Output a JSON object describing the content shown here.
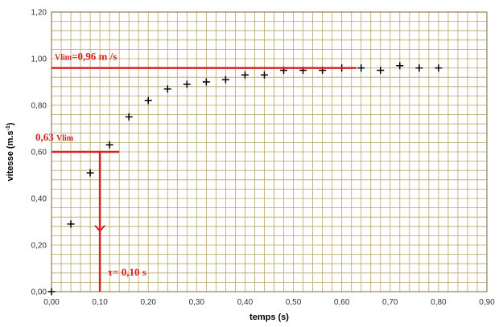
{
  "chart_data": {
    "type": "scatter",
    "xlabel": "temps (s)",
    "ylabel_main": "vitesse (m.s",
    "ylabel_sup": "-1",
    "ylabel_end": ")",
    "xlim": [
      0,
      0.9
    ],
    "ylim": [
      0,
      1.2
    ],
    "x_ticks": [
      "0,00",
      "0,10",
      "0,20",
      "0,30",
      "0,40",
      "0,50",
      "0,60",
      "0,70",
      "0,80",
      "0,90"
    ],
    "y_ticks": [
      "0,00",
      "0,20",
      "0,40",
      "0,60",
      "0,80",
      "1,00",
      "1,20"
    ],
    "grid": true,
    "marker": "+",
    "points": [
      [
        0.0,
        0.0
      ],
      [
        0.04,
        0.29
      ],
      [
        0.08,
        0.51
      ],
      [
        0.12,
        0.63
      ],
      [
        0.16,
        0.75
      ],
      [
        0.2,
        0.82
      ],
      [
        0.24,
        0.87
      ],
      [
        0.28,
        0.89
      ],
      [
        0.32,
        0.9
      ],
      [
        0.36,
        0.91
      ],
      [
        0.4,
        0.93
      ],
      [
        0.44,
        0.93
      ],
      [
        0.48,
        0.95
      ],
      [
        0.52,
        0.95
      ],
      [
        0.56,
        0.95
      ],
      [
        0.6,
        0.96
      ],
      [
        0.64,
        0.96
      ],
      [
        0.68,
        0.95
      ],
      [
        0.72,
        0.97
      ],
      [
        0.76,
        0.96
      ],
      [
        0.8,
        0.96
      ]
    ],
    "annotations": {
      "vlim_line": {
        "y": 0.96,
        "x_end": 0.63
      },
      "vlim_label_main": "Vlim",
      "vlim_label_rest": "=0,96 m /s",
      "v063_line": {
        "y": 0.6,
        "x_end": 0.14
      },
      "v063_label_main": "0,63 ",
      "v063_label_sub": "Vlim",
      "tau_line": {
        "x": 0.1
      },
      "tau_label": "τ=  0,10 s",
      "color": "#d9231f"
    }
  },
  "colors": {
    "grid": "#b8a46a",
    "plot_border": "#7a6a3c",
    "axis_text": "#333333"
  }
}
